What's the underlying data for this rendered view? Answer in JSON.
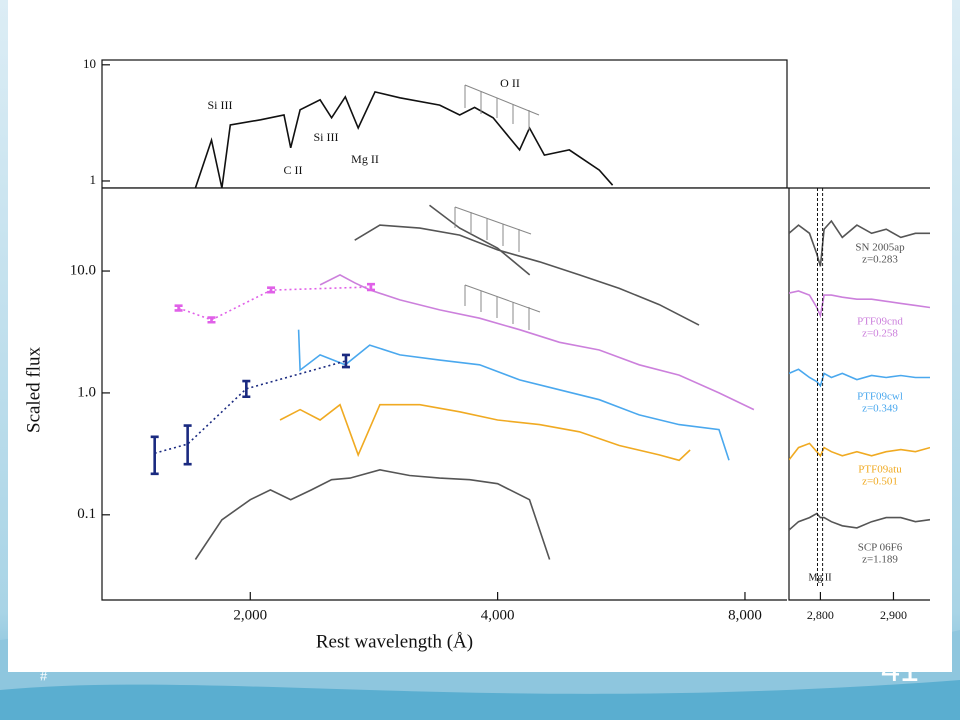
{
  "chart_data": [
    {
      "type": "line",
      "xscale": "log",
      "yscale": "log",
      "xlim": [
        1320,
        9000
      ],
      "ylim": [
        0.87,
        11
      ],
      "yticks": [
        1,
        10
      ],
      "annotations": [
        "Si III",
        "C II",
        "Si III",
        "Mg II",
        "O II"
      ],
      "series": [
        {
          "color": "#111111",
          "x": [
            1715,
            1794,
            1847,
            1891,
            2058,
            2198,
            2240,
            2300,
            2432,
            2512,
            2610,
            2706,
            2837,
            3042,
            3401,
            3597,
            3750,
            3950,
            4254,
            4374,
            4560,
            4890,
            5318,
            5520
          ],
          "values": [
            0.87,
            2.25,
            0.87,
            3.04,
            3.36,
            3.7,
            1.93,
            4.1,
            5.0,
            3.5,
            5.3,
            2.86,
            5.85,
            5.2,
            4.5,
            3.7,
            4.3,
            3.5,
            1.85,
            2.86,
            1.67,
            1.85,
            1.24,
            0.92
          ]
        }
      ]
    },
    {
      "type": "line",
      "xscale": "log",
      "yscale": "log",
      "xlim": [
        1320,
        9000
      ],
      "ylim": [
        0.02,
        48
      ],
      "xlabel": "Rest wavelength (Å)",
      "ylabel": "Scaled flux",
      "xticks": [
        {
          "value": 2000,
          "label": "2,000"
        },
        {
          "value": 4000,
          "label": "4,000"
        },
        {
          "value": 8000,
          "label": "8,000"
        }
      ],
      "yticks": [
        0.1,
        {
          "value": 1,
          "label": "1.0"
        },
        {
          "value": 10,
          "label": "10.0"
        }
      ],
      "series": [
        {
          "color": "#555555",
          "x": [
            2680,
            2876,
            3216,
            3597,
            4000,
            4498,
            5030,
            5625,
            6290,
            7034
          ],
          "values": [
            17.9,
            23.8,
            22.5,
            19.7,
            14.9,
            11.9,
            9.3,
            7.2,
            5.3,
            3.6
          ]
        },
        {
          "color": "#555555",
          "x": [
            3305,
            3597,
            4000,
            4376
          ],
          "values": [
            34.7,
            22.5,
            15.4,
            9.3
          ]
        },
        {
          "color": "#cc80dc",
          "x": [
            2432,
            2572,
            2680,
            2795,
            3042,
            3401,
            3803,
            4254,
            4757,
            5318,
            5948,
            6652,
            7438,
            8203
          ],
          "values": [
            7.7,
            9.3,
            8.0,
            7.0,
            5.8,
            4.8,
            4.1,
            3.3,
            2.6,
            2.25,
            1.7,
            1.4,
            1.0,
            0.73
          ]
        },
        {
          "color": "#4aa8ee",
          "x": [
            2290,
            2300,
            2432,
            2610,
            2795,
            3042,
            3401,
            3803,
            4254,
            4757,
            5318,
            5948,
            6652,
            7438,
            7650
          ],
          "values": [
            3.3,
            1.54,
            2.05,
            1.7,
            2.47,
            2.05,
            1.86,
            1.7,
            1.28,
            1.06,
            0.88,
            0.66,
            0.55,
            0.5,
            0.28
          ]
        },
        {
          "color": "#f0aa22",
          "x": [
            2174,
            2300,
            2432,
            2572,
            2706,
            2876,
            3216,
            3597,
            4000,
            4498,
            5030,
            5625,
            6290,
            6652,
            6860
          ],
          "values": [
            0.6,
            0.73,
            0.6,
            0.8,
            0.31,
            0.8,
            0.8,
            0.7,
            0.6,
            0.55,
            0.48,
            0.37,
            0.31,
            0.28,
            0.34
          ]
        },
        {
          "color": "#555555",
          "x": [
            1715,
            1847,
            2000,
            2116,
            2240,
            2374,
            2512,
            2645,
            2876,
            3126,
            3401,
            3700,
            4000,
            4374,
            4627
          ],
          "values": [
            0.043,
            0.091,
            0.133,
            0.16,
            0.133,
            0.16,
            0.194,
            0.2,
            0.234,
            0.21,
            0.2,
            0.194,
            0.18,
            0.133,
            0.043
          ]
        }
      ],
      "photometry": [
        {
          "color": "#e060e8",
          "x": [
            1636,
            1794,
            2120,
            2805
          ],
          "values": [
            4.97,
            3.97,
            6.98,
            7.4
          ],
          "lower": [
            4.75,
            3.8,
            6.7,
            7.0
          ],
          "upper": [
            5.2,
            4.15,
            7.3,
            7.8
          ]
        },
        {
          "color": "#1a2a80",
          "x": [
            1530,
            1678,
            1978,
            2615
          ],
          "values": [
            0.32,
            0.38,
            1.08,
            1.83
          ],
          "lower": [
            0.217,
            0.26,
            0.93,
            1.63
          ],
          "upper": [
            0.436,
            0.54,
            1.25,
            2.05
          ]
        }
      ]
    },
    {
      "type": "line",
      "xlim": [
        2757,
        2950
      ],
      "ylim": [
        0,
        10
      ],
      "xticks": [
        {
          "value": 2800,
          "label": "2,800"
        },
        {
          "value": 2900,
          "label": "2,900"
        }
      ],
      "vlines": [
        2796,
        2803
      ],
      "vline_label": "Mg II",
      "x": [
        2757,
        2770,
        2785,
        2795,
        2800,
        2805,
        2815,
        2830,
        2850,
        2870,
        2890,
        2910,
        2930,
        2950
      ],
      "series": [
        {
          "name": "SN 2005ap",
          "redshift": "z=0.283",
          "color": "#555555",
          "values": [
            8.9,
            9.1,
            8.9,
            8.4,
            8.1,
            9.0,
            9.2,
            8.8,
            9.1,
            8.9,
            9.0,
            8.8,
            8.9,
            8.9
          ]
        },
        {
          "name": "PTF09cnd",
          "redshift": "z=0.258",
          "color": "#cc80dc",
          "values": [
            7.45,
            7.5,
            7.4,
            7.1,
            6.9,
            7.4,
            7.4,
            7.35,
            7.3,
            7.3,
            7.25,
            7.2,
            7.15,
            7.1
          ]
        },
        {
          "name": "PTF09cwl",
          "redshift": "z=0.349",
          "color": "#4aa8ee",
          "values": [
            5.5,
            5.6,
            5.4,
            5.3,
            5.2,
            5.5,
            5.4,
            5.5,
            5.35,
            5.45,
            5.4,
            5.45,
            5.4,
            5.4
          ]
        },
        {
          "name": "PTF09atu",
          "redshift": "z=0.501",
          "color": "#f0aa22",
          "values": [
            3.4,
            3.7,
            3.8,
            3.6,
            3.5,
            3.7,
            3.6,
            3.5,
            3.6,
            3.5,
            3.6,
            3.65,
            3.6,
            3.7
          ]
        },
        {
          "name": "SCP 06F6",
          "redshift": "z=1.189",
          "color": "#555555",
          "values": [
            1.7,
            1.9,
            2.0,
            2.1,
            2.0,
            2.0,
            1.9,
            1.8,
            1.75,
            1.9,
            2.0,
            2.0,
            1.9,
            1.95
          ]
        }
      ]
    }
  ],
  "slide": {
    "footer": "#",
    "number": "41"
  }
}
